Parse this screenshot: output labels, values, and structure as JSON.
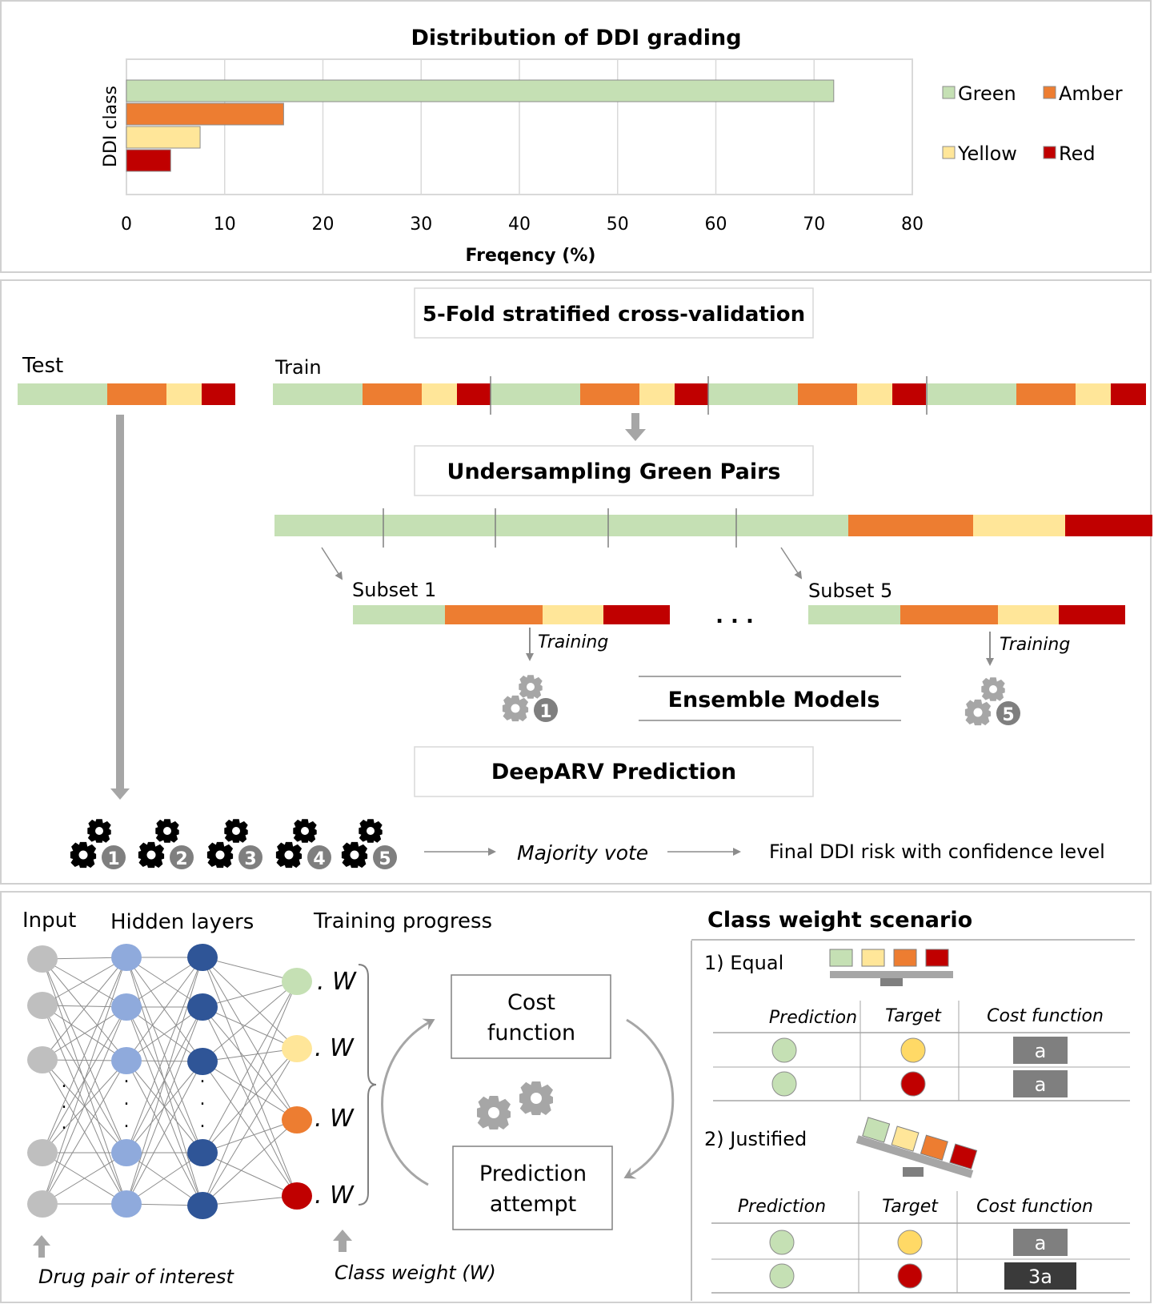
{
  "colors": {
    "green": "#c5e0b4",
    "amber": "#ed7d31",
    "yellow": "#ffe699",
    "red": "#c00000",
    "gray_arrow": "#a6a6a6",
    "hidden1": "#8faadc",
    "hidden2": "#2f5597",
    "input_node": "#bfbfbf",
    "cost_box": "#7f7f7f",
    "cost_box_dark": "#3a3a3a"
  },
  "chart_data": {
    "type": "bar",
    "orientation": "horizontal",
    "title": "Distribution of DDI grading",
    "xlabel": "Freqency (%)",
    "ylabel": "DDI class",
    "xlim": [
      0,
      80
    ],
    "xticks": [
      "0",
      "10",
      "20",
      "30",
      "40",
      "50",
      "60",
      "70",
      "80"
    ],
    "grid": true,
    "legend_position": "right",
    "categories": [
      "Green",
      "Amber",
      "Yellow",
      "Red"
    ],
    "values": [
      72,
      16,
      7.5,
      4.5
    ],
    "legend": [
      "Green",
      "Amber",
      "Yellow",
      "Red"
    ]
  },
  "cv": {
    "title": "5-Fold stratified cross-validation",
    "test_label": "Test",
    "train_label": "Train",
    "undersampling_label": "Undersampling Green Pairs",
    "subset1_label": "Subset 1",
    "subset5_label": "Subset 5",
    "ellipsis": ". . .",
    "training_label": "Training",
    "ensemble_label": "Ensemble Models",
    "prediction_label": "DeepARV Prediction",
    "model_numbers": [
      "1",
      "2",
      "3",
      "4",
      "5"
    ],
    "majority_vote": "Majority vote",
    "final_label": "Final DDI risk with confidence level"
  },
  "nn": {
    "input_label": "Input",
    "hidden_label": "Hidden layers",
    "progress_label": "Training progress",
    "output_weight": ". W",
    "cost_function": [
      "Cost",
      "function"
    ],
    "prediction_attempt": [
      "Prediction",
      "attempt"
    ],
    "drug_pair": "Drug pair of interest",
    "class_weight": "Class weight (W)",
    "dots": "."
  },
  "scenario": {
    "title": "Class weight scenario",
    "equal_label": "1) Equal",
    "justified_label": "2) Justified",
    "col_prediction": "Prediction",
    "col_target": "Target",
    "col_cost": "Cost function",
    "equal_rows": [
      {
        "pred": "green",
        "target": "yellow",
        "cost": "a"
      },
      {
        "pred": "green",
        "target": "red",
        "cost": "a"
      }
    ],
    "justified_rows": [
      {
        "pred": "green",
        "target": "yellow",
        "cost": "a"
      },
      {
        "pred": "green",
        "target": "red",
        "cost": "3a"
      }
    ]
  }
}
